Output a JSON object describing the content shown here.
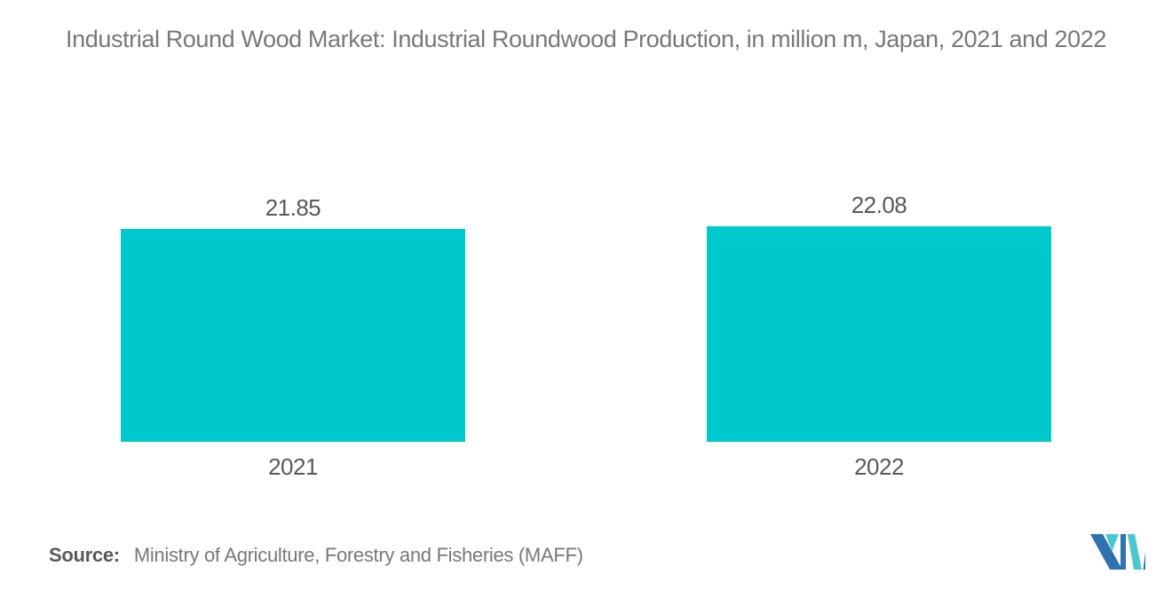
{
  "chart_data": {
    "type": "bar",
    "title": "Industrial Round Wood Market: Industrial Roundwood Production, in million m, Japan, 2021 and 2022",
    "categories": [
      "2021",
      "2022"
    ],
    "values": [
      21.85,
      22.08
    ],
    "value_labels": [
      "21.85",
      "22.08"
    ],
    "xlabel": "",
    "ylabel": "",
    "ylim": [
      0,
      24
    ],
    "grid": false,
    "legend": "none",
    "bar_color": "#00C9CE"
  },
  "source": {
    "label": "Source:",
    "text": "Ministry of Agriculture, Forestry and Fisheries (MAFF)"
  },
  "logo": {
    "name": "mordor-intelligence-logo",
    "colors": {
      "dark_blue": "#2E72B0",
      "teal": "#4BC7CD"
    }
  },
  "colors": {
    "background": "#FFFFFF",
    "title_text": "#77787B",
    "label_text": "#58595B",
    "source_text": "#77787B",
    "bar": "#00C9CE"
  }
}
